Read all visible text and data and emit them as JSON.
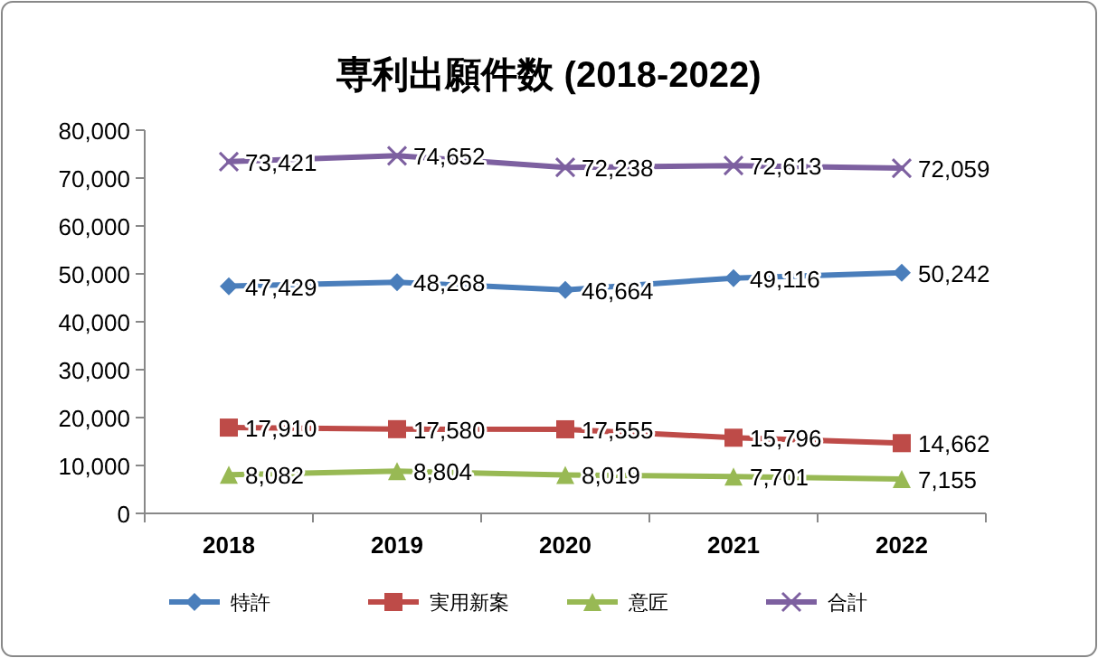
{
  "chart_data": {
    "type": "line",
    "title": "専利出願件数 (2018-2022)",
    "categories": [
      "2018",
      "2019",
      "2020",
      "2021",
      "2022"
    ],
    "series": [
      {
        "name": "特許",
        "color": "#4a7ebb",
        "marker": "diamond",
        "values": [
          47429,
          48268,
          46664,
          49116,
          50242
        ],
        "value_labels": [
          "47,429",
          "48,268",
          "46,664",
          "49,116",
          "50,242"
        ]
      },
      {
        "name": "実用新案",
        "color": "#be4b48",
        "marker": "square",
        "values": [
          17910,
          17580,
          17555,
          15796,
          14662
        ],
        "value_labels": [
          "17,910",
          "17,580",
          "17,555",
          "15,796",
          "14,662"
        ]
      },
      {
        "name": "意匠",
        "color": "#98b954",
        "marker": "triangle",
        "values": [
          8082,
          8804,
          8019,
          7701,
          7155
        ],
        "value_labels": [
          "8,082",
          "8,804",
          "8,019",
          "7,701",
          "7,155"
        ]
      },
      {
        "name": "合計",
        "color": "#7d60a0",
        "marker": "cross",
        "values": [
          73421,
          74652,
          72238,
          72613,
          72059
        ],
        "value_labels": [
          "73,421",
          "74,652",
          "72,238",
          "72,613",
          "72,059"
        ]
      }
    ],
    "ylim": [
      0,
      80000
    ],
    "yticks": [
      {
        "value": 0,
        "label": "0"
      },
      {
        "value": 10000,
        "label": "10,000"
      },
      {
        "value": 20000,
        "label": "20,000"
      },
      {
        "value": 30000,
        "label": "30,000"
      },
      {
        "value": 40000,
        "label": "40,000"
      },
      {
        "value": 50000,
        "label": "50,000"
      },
      {
        "value": 60000,
        "label": "60,000"
      },
      {
        "value": 70000,
        "label": "70,000"
      },
      {
        "value": 80000,
        "label": "80,000"
      }
    ],
    "legend": "bottom"
  }
}
